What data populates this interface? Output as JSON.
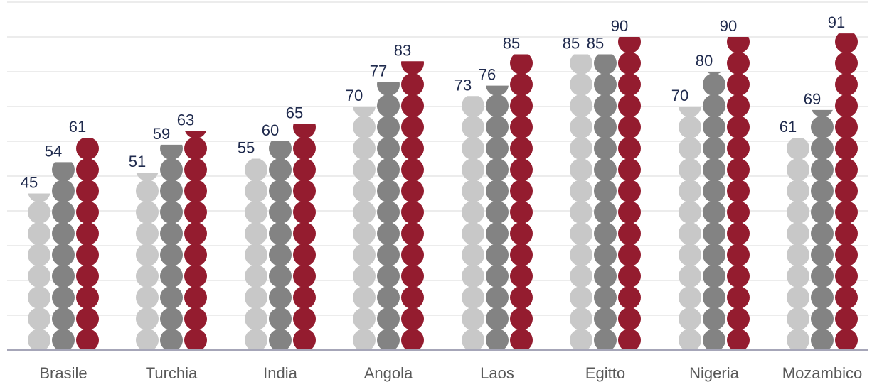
{
  "chart_data": {
    "type": "bar",
    "style": "stacked-dots",
    "categories": [
      "Brasile",
      "Turchia",
      "India",
      "Angola",
      "Laos",
      "Egitto",
      "Nigeria",
      "Mozambico"
    ],
    "series": [
      {
        "values": [
          45,
          51,
          55,
          70,
          73,
          85,
          70,
          61
        ],
        "color": "#c8c8c8"
      },
      {
        "values": [
          54,
          59,
          60,
          77,
          76,
          85,
          80,
          69
        ],
        "color": "#838383"
      },
      {
        "values": [
          61,
          63,
          65,
          83,
          85,
          90,
          90,
          91
        ],
        "color": "#941c2f"
      }
    ],
    "ylim": [
      0,
      100
    ],
    "grid": true,
    "legend": "none"
  }
}
